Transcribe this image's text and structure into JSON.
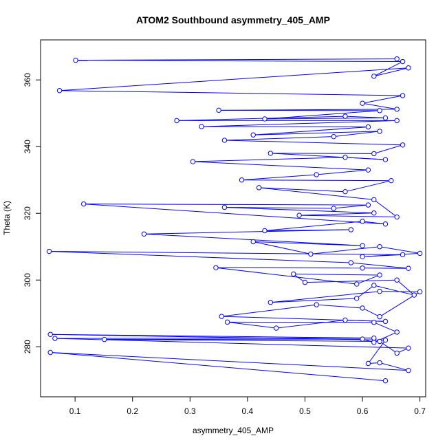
{
  "chart_data": {
    "type": "scatter",
    "title": "ATOM2 Southbound asymmetry_405_AMP",
    "xlabel": "asymmetry_405_AMP",
    "ylabel": "Theta (K)",
    "xlim": [
      0.04,
      0.71
    ],
    "ylim": [
      265,
      372
    ],
    "xticks": [
      "0.1",
      "0.2",
      "0.3",
      "0.4",
      "0.5",
      "0.6",
      "0.7"
    ],
    "xtick_values": [
      0.1,
      0.2,
      0.3,
      0.4,
      0.5,
      0.6,
      0.7
    ],
    "yticks": [
      "280",
      "300",
      "320",
      "340",
      "360"
    ],
    "ytick_values": [
      280,
      300,
      320,
      340,
      360
    ],
    "grid": false,
    "style": "points connected by lines",
    "series": [
      {
        "color": "#0000ff",
        "points": [
          [
            0.64,
            269.8
          ],
          [
            0.057,
            278.3
          ],
          [
            0.68,
            272.9
          ],
          [
            0.63,
            275.2
          ],
          [
            0.61,
            275.0
          ],
          [
            0.64,
            282.0
          ],
          [
            0.057,
            283.7
          ],
          [
            0.62,
            282.6
          ],
          [
            0.065,
            282.5
          ],
          [
            0.68,
            279.6
          ],
          [
            0.66,
            278.1
          ],
          [
            0.63,
            281.6
          ],
          [
            0.151,
            282.2
          ],
          [
            0.6,
            282.3
          ],
          [
            0.62,
            281.3
          ],
          [
            0.66,
            284.4
          ],
          [
            0.62,
            287.3
          ],
          [
            0.365,
            287.4
          ],
          [
            0.45,
            285.6
          ],
          [
            0.57,
            288.0
          ],
          [
            0.64,
            287.6
          ],
          [
            0.355,
            289.1
          ],
          [
            0.52,
            292.6
          ],
          [
            0.6,
            291.6
          ],
          [
            0.63,
            289.0
          ],
          [
            0.7,
            296.5
          ],
          [
            0.63,
            296.6
          ],
          [
            0.44,
            293.3
          ],
          [
            0.59,
            294.5
          ],
          [
            0.62,
            298.4
          ],
          [
            0.69,
            295.5
          ],
          [
            0.66,
            300.0
          ],
          [
            0.5,
            299.3
          ],
          [
            0.48,
            301.8
          ],
          [
            0.63,
            301.5
          ],
          [
            0.59,
            298.8
          ],
          [
            0.345,
            303.7
          ],
          [
            0.6,
            303.6
          ],
          [
            0.68,
            303.5
          ],
          [
            0.58,
            305.2
          ],
          [
            0.055,
            308.6
          ],
          [
            0.67,
            307.6
          ],
          [
            0.6,
            307.0
          ],
          [
            0.7,
            308.0
          ],
          [
            0.63,
            310.0
          ],
          [
            0.51,
            307.8
          ],
          [
            0.41,
            311.5
          ],
          [
            0.6,
            310.3
          ],
          [
            0.22,
            313.8
          ],
          [
            0.58,
            315.1
          ],
          [
            0.43,
            314.8
          ],
          [
            0.6,
            317.6
          ],
          [
            0.64,
            316.8
          ],
          [
            0.115,
            322.8
          ],
          [
            0.61,
            322.5
          ],
          [
            0.55,
            321.5
          ],
          [
            0.36,
            321.8
          ],
          [
            0.62,
            320.1
          ],
          [
            0.49,
            319.4
          ],
          [
            0.66,
            318.9
          ],
          [
            0.62,
            324.1
          ],
          [
            0.42,
            327.7
          ],
          [
            0.57,
            326.5
          ],
          [
            0.65,
            329.8
          ],
          [
            0.39,
            330.0
          ],
          [
            0.52,
            331.6
          ],
          [
            0.61,
            333.0
          ],
          [
            0.305,
            335.5
          ],
          [
            0.57,
            336.8
          ],
          [
            0.64,
            336.1
          ],
          [
            0.44,
            338.0
          ],
          [
            0.62,
            337.9
          ],
          [
            0.67,
            340.5
          ],
          [
            0.36,
            341.9
          ],
          [
            0.55,
            343.0
          ],
          [
            0.63,
            344.6
          ],
          [
            0.41,
            343.5
          ],
          [
            0.61,
            345.9
          ],
          [
            0.32,
            346.0
          ],
          [
            0.66,
            347.8
          ],
          [
            0.277,
            347.8
          ],
          [
            0.57,
            349.1
          ],
          [
            0.64,
            348.6
          ],
          [
            0.43,
            348.3
          ],
          [
            0.63,
            350.8
          ],
          [
            0.35,
            350.9
          ],
          [
            0.66,
            351.2
          ],
          [
            0.6,
            353.0
          ],
          [
            0.67,
            355.3
          ],
          [
            0.073,
            356.8
          ],
          [
            0.68,
            363.6
          ],
          [
            0.62,
            361.1
          ],
          [
            0.67,
            365.5
          ],
          [
            0.101,
            365.9
          ],
          [
            0.66,
            366.3
          ]
        ]
      }
    ]
  }
}
